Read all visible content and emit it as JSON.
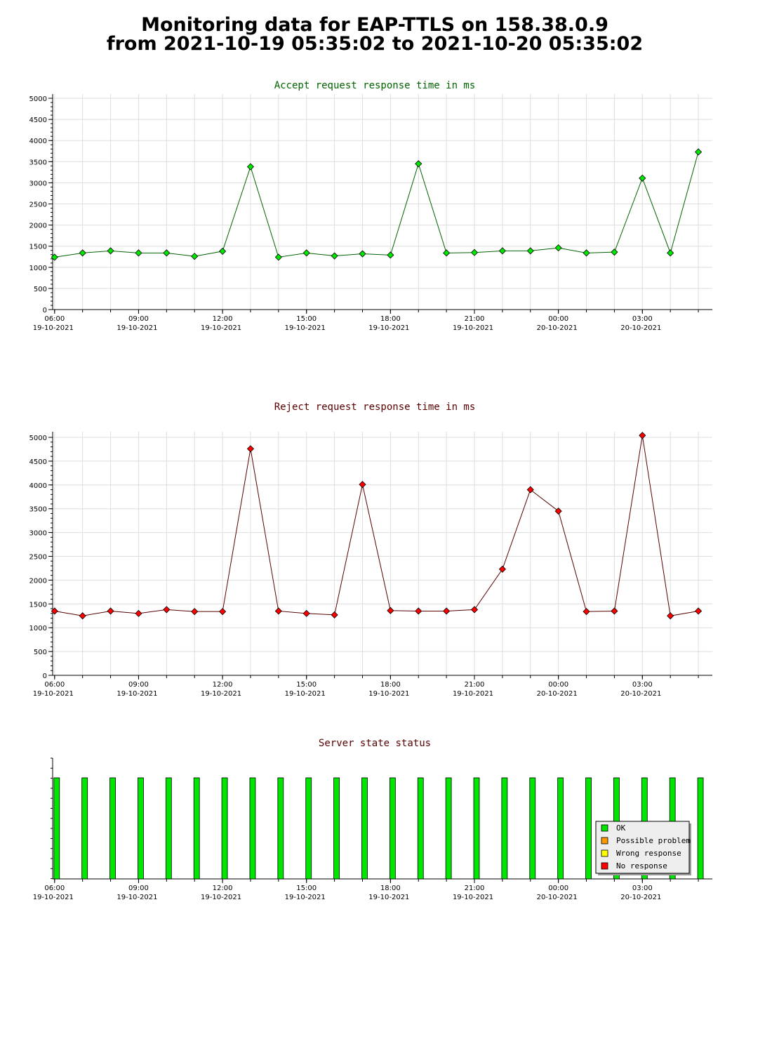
{
  "page": {
    "title_line1": "Monitoring data for EAP-TTLS on 158.38.0.9",
    "title_line2": "from 2021-10-19 05:35:02 to 2021-10-20 05:35:02"
  },
  "chart_data": [
    {
      "type": "line",
      "title": "Accept request response time in ms",
      "title_color": "#006400",
      "marker_color": "#00e600",
      "line_color": "#006400",
      "xlabel": "",
      "ylabel": "",
      "ylim": [
        0,
        5000
      ],
      "y_ticks": [
        "0",
        "500",
        "1000",
        "1500",
        "2000",
        "2500",
        "3000",
        "3500",
        "4000",
        "4500",
        "5000"
      ],
      "x_range_hours": [
        5.93,
        29.5
      ],
      "x_ticks": [
        {
          "time": "06:00",
          "date": "19-10-2021"
        },
        {
          "time": "09:00",
          "date": "19-10-2021"
        },
        {
          "time": "12:00",
          "date": "19-10-2021"
        },
        {
          "time": "15:00",
          "date": "19-10-2021"
        },
        {
          "time": "18:00",
          "date": "19-10-2021"
        },
        {
          "time": "21:00",
          "date": "19-10-2021"
        },
        {
          "time": "00:00",
          "date": "20-10-2021"
        },
        {
          "time": "03:00",
          "date": "20-10-2021"
        }
      ],
      "x_hours": [
        6.0,
        7.0,
        8.0,
        9.0,
        10.0,
        11.0,
        12.0,
        13.0,
        14.0,
        15.0,
        16.0,
        17.0,
        18.0,
        19.0,
        20.0,
        21.0,
        22.0,
        23.0,
        24.0,
        25.0,
        26.0,
        27.0,
        28.0,
        29.0
      ],
      "grid": true,
      "series": [
        {
          "values": [
            1240,
            1340,
            1390,
            1340,
            1340,
            1260,
            1380,
            3380,
            1240,
            1340,
            1270,
            1320,
            1290,
            3450,
            1340,
            1350,
            1390,
            1390,
            1460,
            1340,
            1360,
            3110,
            1340,
            3730
          ]
        }
      ]
    },
    {
      "type": "line",
      "title": "Reject request response time in ms",
      "title_color": "#5a0000",
      "marker_color": "#ff0000",
      "line_color": "#5a0000",
      "xlabel": "",
      "ylabel": "",
      "ylim": [
        0,
        5000
      ],
      "y_ticks": [
        "0",
        "500",
        "1000",
        "1500",
        "2000",
        "2500",
        "3000",
        "3500",
        "4000",
        "4500",
        "5000"
      ],
      "x_range_hours": [
        5.93,
        29.5
      ],
      "x_ticks": [
        {
          "time": "06:00",
          "date": "19-10-2021"
        },
        {
          "time": "09:00",
          "date": "19-10-2021"
        },
        {
          "time": "12:00",
          "date": "19-10-2021"
        },
        {
          "time": "15:00",
          "date": "19-10-2021"
        },
        {
          "time": "18:00",
          "date": "19-10-2021"
        },
        {
          "time": "21:00",
          "date": "19-10-2021"
        },
        {
          "time": "00:00",
          "date": "20-10-2021"
        },
        {
          "time": "03:00",
          "date": "20-10-2021"
        }
      ],
      "x_hours": [
        6.0,
        7.0,
        8.0,
        9.0,
        10.0,
        11.0,
        12.0,
        13.0,
        14.0,
        15.0,
        16.0,
        17.0,
        18.0,
        19.0,
        20.0,
        21.0,
        22.0,
        23.0,
        24.0,
        25.0,
        26.0,
        27.0,
        28.0,
        29.0
      ],
      "grid": true,
      "series": [
        {
          "values": [
            1350,
            1250,
            1350,
            1300,
            1380,
            1340,
            1340,
            4760,
            1350,
            1300,
            1270,
            4010,
            1360,
            1350,
            1350,
            1380,
            2230,
            3900,
            3450,
            1340,
            1350,
            5040,
            1250,
            1350
          ]
        }
      ]
    },
    {
      "type": "bar",
      "title": "Server state status",
      "title_color": "#5a0000",
      "x_range_hours": [
        5.93,
        29.5
      ],
      "x_ticks": [
        {
          "time": "06:00",
          "date": "19-10-2021"
        },
        {
          "time": "09:00",
          "date": "19-10-2021"
        },
        {
          "time": "12:00",
          "date": "19-10-2021"
        },
        {
          "time": "15:00",
          "date": "19-10-2021"
        },
        {
          "time": "18:00",
          "date": "19-10-2021"
        },
        {
          "time": "21:00",
          "date": "19-10-2021"
        },
        {
          "time": "00:00",
          "date": "20-10-2021"
        },
        {
          "time": "03:00",
          "date": "20-10-2021"
        }
      ],
      "x_hours": [
        6.0,
        7.0,
        8.0,
        9.0,
        10.0,
        11.0,
        12.0,
        13.0,
        14.0,
        15.0,
        16.0,
        17.0,
        18.0,
        19.0,
        20.0,
        21.0,
        22.0,
        23.0,
        24.0,
        25.0,
        26.0,
        27.0,
        28.0,
        29.0
      ],
      "states": [
        "OK",
        "OK",
        "OK",
        "OK",
        "OK",
        "OK",
        "OK",
        "OK",
        "OK",
        "OK",
        "OK",
        "OK",
        "OK",
        "OK",
        "OK",
        "OK",
        "OK",
        "OK",
        "OK",
        "OK",
        "OK",
        "OK",
        "OK",
        "OK"
      ],
      "grid": false,
      "legend_position": "bottom-right",
      "legend": [
        {
          "label": "OK",
          "color": "#00e600"
        },
        {
          "label": "Possible problem",
          "color": "#ff9900"
        },
        {
          "label": "Wrong response",
          "color": "#ffff00"
        },
        {
          "label": "No response",
          "color": "#ff0000"
        }
      ]
    }
  ]
}
